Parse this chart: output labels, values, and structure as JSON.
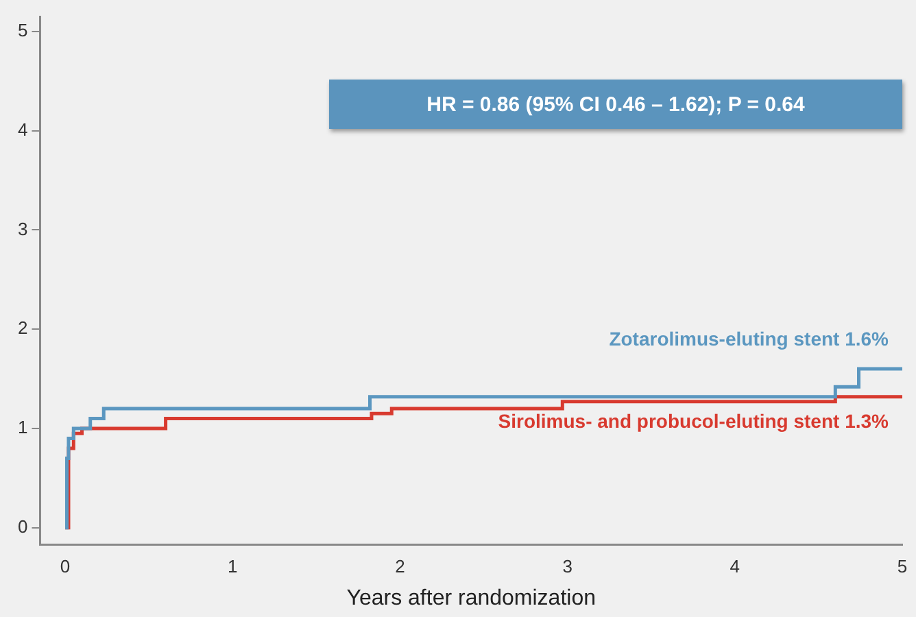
{
  "chart_data": {
    "type": "step",
    "xlabel": "Years after randomization",
    "annotations": [
      "HR = 0.86 (95% CI 0.46 – 1.62); P = 0.64"
    ],
    "xlim": [
      -0.15,
      5
    ],
    "xticks": [
      0,
      1,
      2,
      3,
      4,
      5
    ],
    "ylim": [
      -0.17,
      5.15
    ],
    "yticks": [
      0,
      1,
      2,
      3,
      4,
      5
    ],
    "grid": false,
    "legend": false,
    "marker": "none",
    "series": [
      {
        "name": "Zotarolimus-eluting stent 1.6%",
        "color": "#5b97c0",
        "x": [
          0,
          0.01,
          0.02,
          0.05,
          0.15,
          0.23,
          1.82,
          4.6,
          4.74,
          5
        ],
        "values": [
          0,
          0.7,
          0.9,
          1.0,
          1.1,
          1.2,
          1.32,
          1.42,
          1.6,
          1.6
        ]
      },
      {
        "name": "Sirolimus- and probucol-eluting stent 1.3%",
        "color": "#d83a2f",
        "x": [
          0,
          0.02,
          0.05,
          0.1,
          0.6,
          1.83,
          1.95,
          2.97,
          4.6,
          5
        ],
        "values": [
          0,
          0.8,
          0.95,
          1.0,
          1.1,
          1.15,
          1.2,
          1.27,
          1.32,
          1.32
        ]
      }
    ]
  }
}
